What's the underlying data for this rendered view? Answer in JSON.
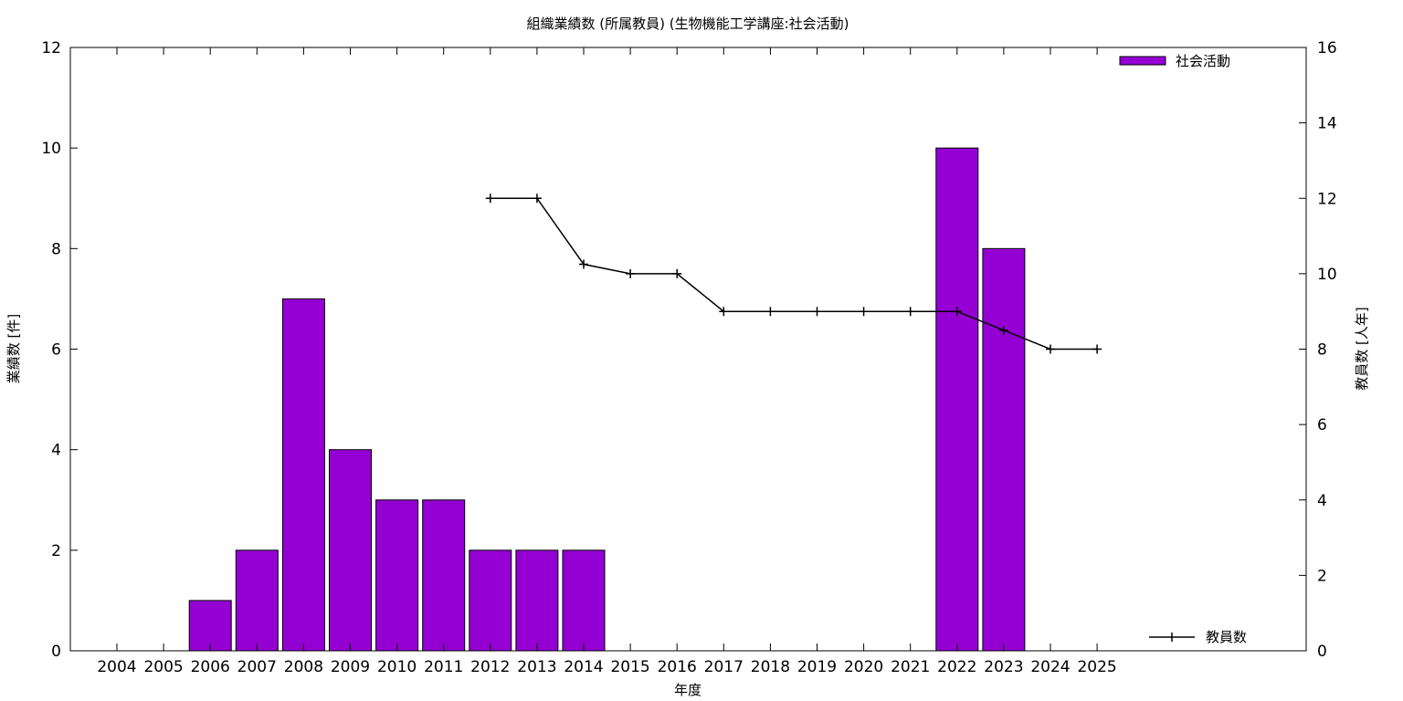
{
  "chart_data": {
    "type": "bar",
    "title": "組織業績数 (所属教員) (生物機能工学講座:社会活動)",
    "xlabel": "年度",
    "ylabel": "業績数 [件]",
    "y2label": "教員数 [人年]",
    "categories": [
      "2004",
      "2005",
      "2006",
      "2007",
      "2008",
      "2009",
      "2010",
      "2011",
      "2012",
      "2013",
      "2014",
      "2015",
      "2016",
      "2017",
      "2018",
      "2019",
      "2020",
      "2021",
      "2022",
      "2023",
      "2024",
      "2025"
    ],
    "ylim": [
      0,
      12
    ],
    "y2lim": [
      0,
      16
    ],
    "yticks": [
      "0",
      "2",
      "4",
      "6",
      "8",
      "10",
      "12"
    ],
    "y2ticks": [
      "0",
      "2",
      "4",
      "6",
      "8",
      "10",
      "12",
      "14",
      "16"
    ],
    "series": [
      {
        "name": "社会活動",
        "type": "bar",
        "axis": "left",
        "color": "#9400d3",
        "values": [
          0,
          0,
          1,
          2,
          7,
          4,
          3,
          3,
          2,
          2,
          2,
          0,
          0,
          0,
          0,
          0,
          0,
          0,
          10,
          8,
          0,
          0
        ]
      },
      {
        "name": "教員数",
        "type": "line",
        "axis": "right",
        "color": "#000000",
        "values": [
          null,
          null,
          null,
          null,
          null,
          null,
          null,
          null,
          12,
          12,
          10.25,
          10,
          10,
          9,
          9,
          9,
          9,
          9,
          9,
          8.5,
          8,
          8
        ]
      }
    ],
    "legend": [
      "top-right",
      "bottom-right"
    ],
    "grid": false
  }
}
